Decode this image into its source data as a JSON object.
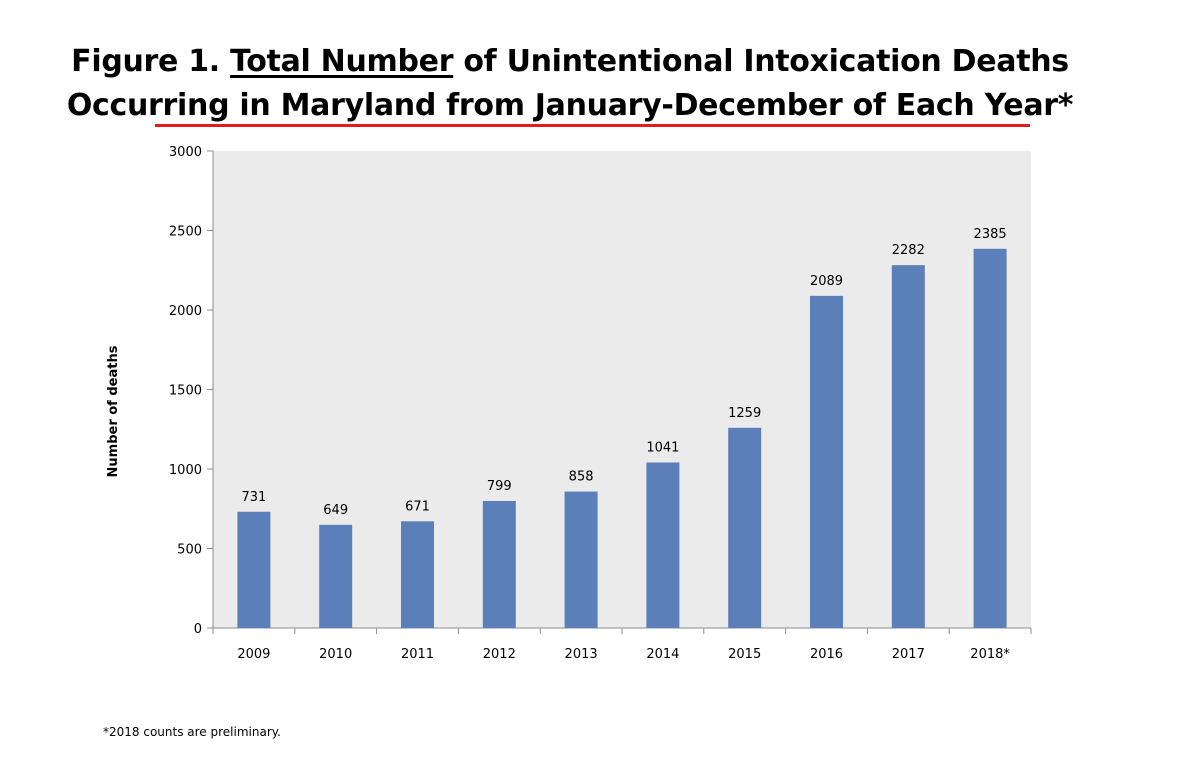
{
  "title": {
    "prefix": "Figure 1. ",
    "underlined": "Total Number",
    "rest_line1": " of Unintentional Intoxication Deaths",
    "line2": "Occurring in Maryland from January-December of Each Year*"
  },
  "colors": {
    "bar": "#5b7fb8",
    "plot_background": "#ebebeb",
    "title_underline": "#e31b1b"
  },
  "chart_data": {
    "type": "bar",
    "categories": [
      "2009",
      "2010",
      "2011",
      "2012",
      "2013",
      "2014",
      "2015",
      "2016",
      "2017",
      "2018*"
    ],
    "values": [
      731,
      649,
      671,
      799,
      858,
      1041,
      1259,
      2089,
      2282,
      2385
    ],
    "data_labels": [
      "731",
      "649",
      "671",
      "799",
      "858",
      "1041",
      "1259",
      "2089",
      "2282",
      "2385"
    ],
    "xlabel": "",
    "ylabel": "Number of deaths",
    "ylim": [
      0,
      3000
    ],
    "yticks": [
      0,
      500,
      1000,
      1500,
      2000,
      2500,
      3000
    ],
    "grid": false,
    "legend": "none"
  },
  "footnote": "*2018 counts are preliminary."
}
